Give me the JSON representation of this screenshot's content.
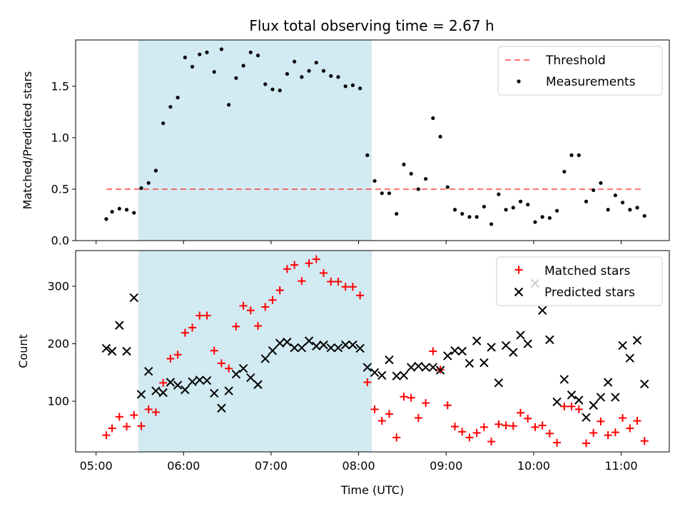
{
  "title": "Flux total observing time = 2.67 h",
  "colors": {
    "highlight": "#add8e6",
    "threshold": "#ff0000",
    "measurement": "#000000",
    "matched": "#ff0000",
    "predicted": "#000000"
  },
  "chart_data": [
    {
      "type": "scatter",
      "ylabel": "Matched/Predicted stars",
      "ylim": [
        0,
        1.95
      ],
      "yticks": [
        0.0,
        0.5,
        1.0,
        1.5
      ],
      "ytick_labels": [
        "0.0",
        "0.5",
        "1.0",
        "1.5"
      ],
      "legend": {
        "placement": "top-right",
        "entries": [
          "Threshold",
          "Measurements"
        ]
      },
      "shaded_span": {
        "x_start": "05:29",
        "x_end": "08:09"
      },
      "threshold": {
        "name": "Threshold",
        "value": 0.5,
        "x_start": "05:07",
        "x_end": "11:14"
      },
      "series": [
        {
          "name": "Measurements",
          "x": [
            "05:07",
            "05:11",
            "05:16",
            "05:21",
            "05:26",
            "05:31",
            "05:36",
            "05:41",
            "05:46",
            "05:51",
            "05:56",
            "06:01",
            "06:06",
            "06:11",
            "06:16",
            "06:21",
            "06:26",
            "06:31",
            "06:36",
            "06:41",
            "06:46",
            "06:51",
            "06:56",
            "07:01",
            "07:06",
            "07:11",
            "07:16",
            "07:21",
            "07:26",
            "07:31",
            "07:36",
            "07:41",
            "07:46",
            "07:51",
            "07:56",
            "08:01",
            "08:06",
            "08:11",
            "08:16",
            "08:21",
            "08:26",
            "08:31",
            "08:36",
            "08:41",
            "08:46",
            "08:51",
            "08:56",
            "09:01",
            "09:06",
            "09:11",
            "09:16",
            "09:21",
            "09:26",
            "09:31",
            "09:36",
            "09:41",
            "09:46",
            "09:51",
            "09:56",
            "10:01",
            "10:06",
            "10:11",
            "10:16",
            "10:21",
            "10:26",
            "10:31",
            "10:36",
            "10:41",
            "10:46",
            "10:51",
            "10:56",
            "11:01",
            "11:06",
            "11:11",
            "11:16"
          ],
          "y": [
            0.21,
            0.28,
            0.31,
            0.3,
            0.27,
            0.51,
            0.56,
            0.68,
            1.14,
            1.3,
            1.39,
            1.78,
            1.69,
            1.81,
            1.83,
            1.64,
            1.86,
            1.32,
            1.58,
            1.7,
            1.83,
            1.8,
            1.52,
            1.47,
            1.46,
            1.62,
            1.74,
            1.59,
            1.65,
            1.73,
            1.65,
            1.6,
            1.59,
            1.5,
            1.51,
            1.48,
            0.83,
            0.58,
            0.46,
            0.46,
            0.26,
            0.74,
            0.65,
            0.5,
            0.6,
            1.19,
            1.01,
            0.52,
            0.3,
            0.26,
            0.23,
            0.23,
            0.33,
            0.16,
            0.45,
            0.3,
            0.32,
            0.38,
            0.35,
            0.18,
            0.23,
            0.22,
            0.29,
            0.67,
            0.83,
            0.83,
            0.38,
            0.49,
            0.56,
            0.3,
            0.44,
            0.37,
            0.3,
            0.32,
            0.24
          ]
        }
      ]
    },
    {
      "type": "scatter",
      "xlabel": "Time (UTC)",
      "ylabel": "Count",
      "ylim": [
        12,
        362
      ],
      "yticks": [
        100,
        200,
        300
      ],
      "ytick_labels": [
        "100",
        "200",
        "300"
      ],
      "xlim": [
        "04:46",
        "11:33"
      ],
      "xticks": [
        "05:00",
        "06:00",
        "07:00",
        "08:00",
        "09:00",
        "10:00",
        "11:00"
      ],
      "xtick_labels": [
        "05:00",
        "06:00",
        "07:00",
        "08:00",
        "09:00",
        "10:00",
        "11:00"
      ],
      "legend": {
        "placement": "top-right",
        "entries": [
          "Matched stars",
          "Predicted stars"
        ]
      },
      "shaded_span": {
        "x_start": "05:29",
        "x_end": "08:09"
      },
      "x": [
        "05:07",
        "05:11",
        "05:16",
        "05:21",
        "05:26",
        "05:31",
        "05:36",
        "05:41",
        "05:46",
        "05:51",
        "05:56",
        "06:01",
        "06:06",
        "06:11",
        "06:16",
        "06:21",
        "06:26",
        "06:31",
        "06:36",
        "06:41",
        "06:46",
        "06:51",
        "06:56",
        "07:01",
        "07:06",
        "07:11",
        "07:16",
        "07:21",
        "07:26",
        "07:31",
        "07:36",
        "07:41",
        "07:46",
        "07:51",
        "07:56",
        "08:01",
        "08:06",
        "08:11",
        "08:16",
        "08:21",
        "08:26",
        "08:31",
        "08:36",
        "08:41",
        "08:46",
        "08:51",
        "08:56",
        "09:01",
        "09:06",
        "09:11",
        "09:16",
        "09:21",
        "09:26",
        "09:31",
        "09:36",
        "09:41",
        "09:46",
        "09:51",
        "09:56",
        "10:01",
        "10:06",
        "10:11",
        "10:16",
        "10:21",
        "10:26",
        "10:31",
        "10:36",
        "10:41",
        "10:46",
        "10:51",
        "10:56",
        "11:01",
        "11:06",
        "11:11",
        "11:16"
      ],
      "series": [
        {
          "name": "Matched stars",
          "values": [
            41,
            53,
            73,
            56,
            76,
            57,
            86,
            81,
            132,
            174,
            181,
            219,
            228,
            249,
            249,
            188,
            166,
            157,
            230,
            266,
            258,
            231,
            264,
            276,
            293,
            330,
            337,
            309,
            340,
            347,
            323,
            308,
            308,
            299,
            299,
            284,
            133,
            86,
            66,
            78,
            37,
            108,
            106,
            71,
            97,
            187,
            155,
            93,
            56,
            47,
            37,
            45,
            55,
            30,
            60,
            58,
            57,
            80,
            70,
            55,
            58,
            44,
            28,
            91,
            91,
            86,
            27,
            45,
            65,
            41,
            46,
            71,
            53,
            66,
            31
          ]
        },
        {
          "name": "Predicted stars",
          "values": [
            192,
            187,
            232,
            187,
            280,
            112,
            152,
            118,
            115,
            133,
            128,
            120,
            134,
            137,
            136,
            114,
            88,
            118,
            147,
            157,
            141,
            129,
            174,
            188,
            201,
            203,
            193,
            193,
            205,
            196,
            198,
            193,
            193,
            198,
            198,
            192,
            159,
            150,
            145,
            172,
            144,
            145,
            159,
            161,
            159,
            159,
            154,
            179,
            188,
            187,
            166,
            205,
            167,
            194,
            132,
            197,
            185,
            215,
            200,
            305,
            258,
            207,
            99,
            138,
            111,
            102,
            72,
            93,
            107,
            133,
            107,
            197,
            175,
            206,
            130
          ]
        }
      ]
    }
  ]
}
